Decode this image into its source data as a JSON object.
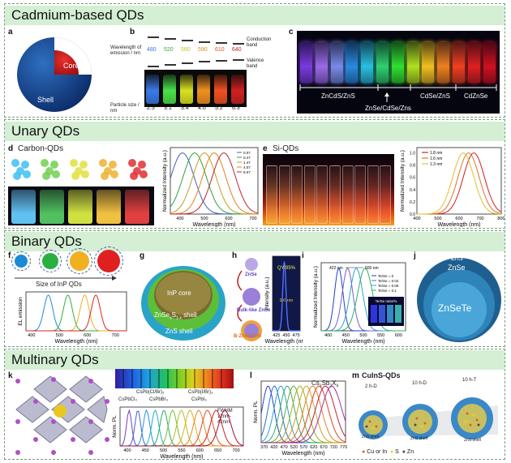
{
  "sections": {
    "cadmium": {
      "title": "Cadmium-based QDs"
    },
    "unary": {
      "title": "Unary QDs"
    },
    "binary": {
      "title": "Binary QDs"
    },
    "multinary": {
      "title": "Multinary QDs"
    }
  },
  "panels": {
    "a": {
      "letter": "a",
      "core": "Core",
      "shell": "Shell"
    },
    "b": {
      "letter": "b",
      "wavelength_label": "Wavelength of emission / nm",
      "conduction": "Conduction band",
      "valence": "Valence band",
      "wavelengths": [
        "480",
        "520",
        "560",
        "590",
        "610",
        "640"
      ],
      "wl_colors": [
        "#3a7ad8",
        "#3aa83a",
        "#c8c030",
        "#e08a20",
        "#e05020",
        "#c02020"
      ],
      "size_label": "Particle size / nm",
      "sizes": [
        "2.5",
        "3.1",
        "3.4",
        "4.0",
        "5.2",
        "6.3"
      ]
    },
    "c": {
      "letter": "c",
      "groups": [
        "ZnCdS/ZnS",
        "ZnSe/CdSe/Zns",
        "CdSe/ZnS",
        "CdZnSe"
      ]
    },
    "d": {
      "letter": "d",
      "title": "Carbon-QDs",
      "legend": [
        "0.07",
        "0.47",
        "1.47",
        "4.07",
        "9.07"
      ],
      "ylabel": "Normalized Intensity (a.u.)",
      "xlabel": "Wavelength (nm)",
      "xticks": [
        "400",
        "500",
        "600",
        "700"
      ]
    },
    "e": {
      "letter": "e",
      "title": "Si-QDs",
      "legend": [
        "1.8 nm",
        "1.6 nm",
        "1.3 nm"
      ],
      "ylabel": "Normalized Intensity (a.u.)",
      "xlabel": "Wavelength (nm)",
      "xticks": [
        "400",
        "500",
        "600",
        "700",
        "800"
      ],
      "yticks": [
        "0.0",
        "0.2",
        "0.4",
        "0.6",
        "0.8",
        "1.0"
      ]
    },
    "f": {
      "letter": "f",
      "size_label": "Size of InP QDs",
      "ylabel": "EL emission",
      "xlabel": "Wavelength (nm)",
      "xticks": [
        "400",
        "500",
        "600",
        "700"
      ]
    },
    "g": {
      "letter": "g",
      "core": "InP core",
      "mid_shell_main": "ZnSe",
      "mid_shell_sub": "x",
      "mid_shell_main2": "S",
      "mid_shell_sub2": "1-x",
      "mid_shell_tail": " shell",
      "outer_shell": "ZnS shell"
    },
    "h": {
      "letter": "h",
      "step1": "ZnSe",
      "step2": "Bulk-like ZnSe",
      "step3": "B-ZnSe/ZnS",
      "qy": "QY:95%",
      "fwhm": "9.6 nm",
      "ylabel": "Intensity (a.u.)",
      "xlabel": "Wavelength (nm)",
      "xticks": [
        "425",
        "450",
        "475"
      ]
    },
    "i": {
      "letter": "i",
      "ann1": "422 nm",
      "ann2": "500 nm",
      "legend": [
        "Te/Se = 0",
        "Te/Se = 0.02",
        "Te/Se = 0.05",
        "Te/Se = 0.1"
      ],
      "inset_label": "Te/Se ratio/%",
      "ylabel": "Normalized Intensity (a.u.)",
      "xlabel": "Wavelength (nm)",
      "xticks": [
        "400",
        "450",
        "500",
        "550",
        "600"
      ]
    },
    "j": {
      "letter": "j",
      "outer": "ZnS",
      "middle": "ZnSe",
      "core": "ZnSeTe"
    },
    "k": {
      "letter": "k",
      "top_labels": [
        "CsPb(Cl/Br)₃",
        "CsPb(I/Br)₃"
      ],
      "mid_labels": [
        "CsPbCl₃",
        "CsPbBr₃",
        "CsPbI₃"
      ],
      "fwhm": "FWHM 12nm-42nm",
      "ylabel": "Norm. PL",
      "xlabel": "Wavelength (nm)",
      "xticks": [
        "400",
        "450",
        "500",
        "550",
        "600",
        "650",
        "700"
      ]
    },
    "l": {
      "letter": "l",
      "formula_main": "Cs",
      "formula_sub1": "3",
      "formula_mid": "Sb",
      "formula_sub2": "2",
      "formula_x": "X",
      "formula_sub3": "9",
      "ylabel": "Norm. PL",
      "xlabel": "Wavelength (nm)",
      "xticks": [
        "370",
        "420",
        "470",
        "520",
        "570",
        "620",
        "670",
        "720",
        "770"
      ]
    },
    "m": {
      "letter": "m",
      "title": "CuInS-QDs",
      "stages": [
        "2 h-D",
        "10 h-D",
        "10 h-T"
      ],
      "shell_label": "ZnS shell",
      "legend": [
        "Cu or In",
        "S",
        "Zn"
      ]
    }
  }
}
